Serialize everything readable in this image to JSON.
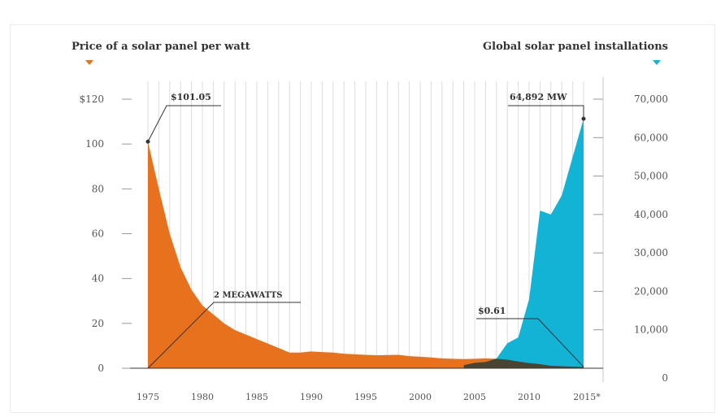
{
  "chart_data": {
    "type": "area",
    "left_title": "Price of a solar panel per watt",
    "right_title": "Global solar panel installations",
    "x_ticks": [
      "1975",
      "1980",
      "1985",
      "1990",
      "1995",
      "2000",
      "2005",
      "2010",
      "2015*"
    ],
    "left_ticks": [
      "$120",
      "100",
      "80",
      "60",
      "40",
      "20",
      "0"
    ],
    "right_ticks": [
      "70,000",
      "60,000",
      "50,000",
      "40,000",
      "30,000",
      "20,000",
      "10,000",
      "0"
    ],
    "xlim": [
      1975,
      2015
    ],
    "ylim_left": [
      0,
      120
    ],
    "ylim_right": [
      0,
      70000
    ],
    "grid": "vertical",
    "colors": {
      "price": "#e8711e",
      "installs": "#13b3d6",
      "overlap": "#4a4433"
    },
    "series": [
      {
        "axis": "left",
        "x": [
          1975,
          1976,
          1977,
          1978,
          1979,
          1980,
          1981,
          1982,
          1983,
          1984,
          1985,
          1986,
          1987,
          1988,
          1989,
          1990,
          1991,
          1992,
          1993,
          1994,
          1995,
          1996,
          1997,
          1998,
          1999,
          2000,
          2001,
          2002,
          2003,
          2004,
          2005,
          2006,
          2007,
          2008,
          2009,
          2010,
          2011,
          2012,
          2013,
          2014,
          2015
        ],
        "values": [
          101.05,
          80,
          60,
          45,
          35,
          28,
          24,
          20,
          17,
          15,
          13,
          11,
          9,
          7,
          7,
          7.5,
          7.2,
          7,
          6.5,
          6.2,
          6,
          5.8,
          5.9,
          6,
          5.4,
          5.1,
          4.8,
          4.4,
          4.2,
          4.1,
          4.2,
          4.4,
          4.2,
          3.8,
          3.0,
          2.3,
          1.8,
          1.1,
          0.9,
          0.7,
          0.61
        ]
      },
      {
        "axis": "right",
        "x": [
          2004,
          2005,
          2006,
          2007,
          2008,
          2009,
          2010,
          2011,
          2012,
          2013,
          2014,
          2015
        ],
        "values": [
          800,
          1400,
          1600,
          2500,
          6500,
          8000,
          18000,
          41000,
          40000,
          45000,
          55000,
          64892
        ]
      }
    ],
    "annotations": [
      {
        "text": "$101.05",
        "x": 1975,
        "y": 101.05,
        "axis": "left"
      },
      {
        "text": "2 MEGAWATTS",
        "x": 1975,
        "y": 0,
        "axis": "left"
      },
      {
        "text": "$0.61",
        "x": 2015,
        "y": 0.61,
        "axis": "left"
      },
      {
        "text": "64,892 MW",
        "x": 2015,
        "y": 64892,
        "axis": "right"
      }
    ]
  }
}
